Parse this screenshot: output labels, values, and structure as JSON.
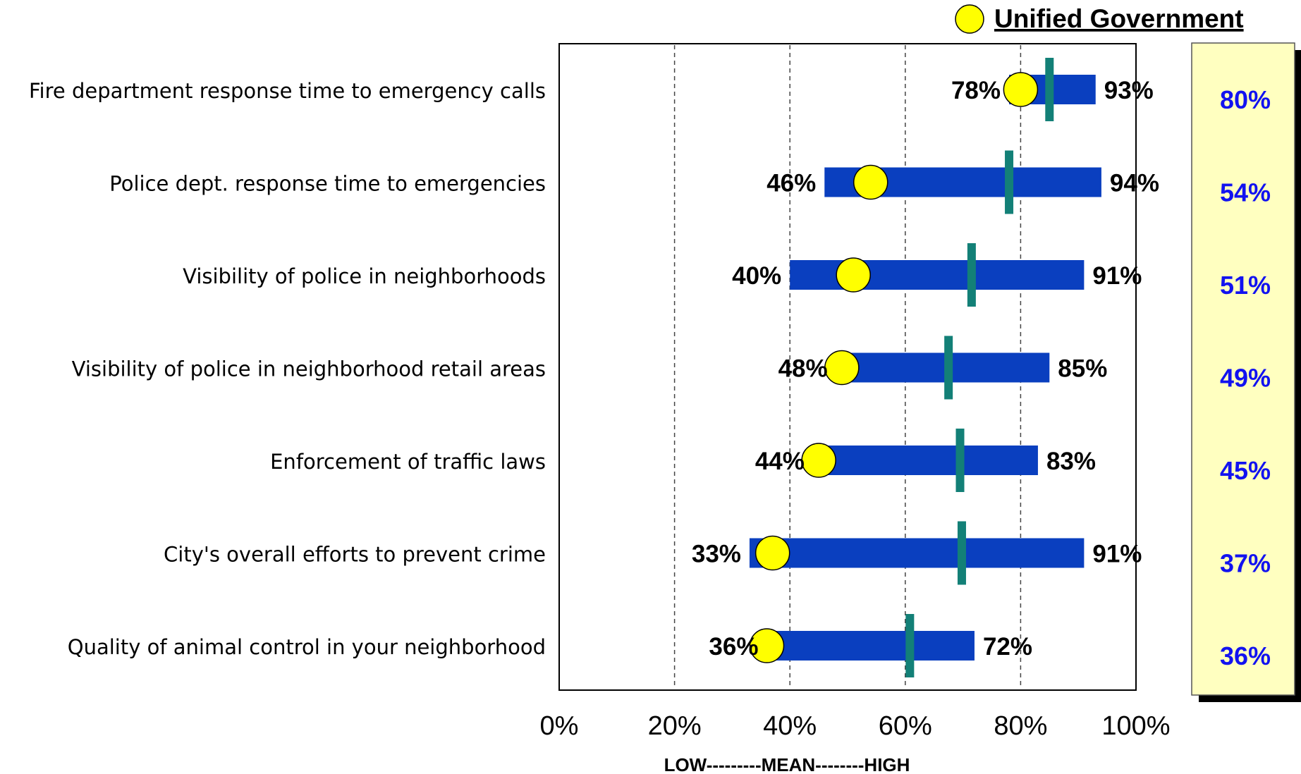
{
  "chart_data": {
    "type": "range-bar",
    "legend": "Unified Government",
    "xlabel": "LOW---------MEAN--------HIGH",
    "xlim": [
      0,
      100
    ],
    "x_ticks": [
      "0%",
      "20%",
      "40%",
      "60%",
      "80%",
      "100%"
    ],
    "grid": "vertical dashed at 20, 40, 60, 80",
    "colors": {
      "bar": "#0a3fbf",
      "mean": "#138077",
      "marker": "#ffff00",
      "ug_text": "#1212f0",
      "panel": "#ffffc0"
    },
    "categories": [
      "Fire department response time to emergency calls",
      "Police dept. response time to emergencies",
      "Visibility of police in neighborhoods",
      "Visibility of police in neighborhood retail areas",
      "Enforcement of traffic laws",
      "City's overall efforts to prevent crime",
      "Quality of animal control in your neighborhood"
    ],
    "low": [
      78,
      46,
      40,
      48,
      44,
      33,
      36
    ],
    "high": [
      93,
      94,
      91,
      85,
      83,
      91,
      72
    ],
    "low_labels": [
      "78%",
      "46%",
      "40%",
      "48%",
      "44%",
      "33%",
      "36%"
    ],
    "high_labels": [
      "93%",
      "94%",
      "91%",
      "85%",
      "83%",
      "91%",
      "72%"
    ],
    "mean": [
      85,
      78,
      71.5,
      67.5,
      69.5,
      69.8,
      60.8
    ],
    "unified_government": [
      80,
      54,
      51,
      49,
      45,
      37,
      36
    ],
    "unified_government_labels": [
      "80%",
      "54%",
      "51%",
      "49%",
      "45%",
      "37%",
      "36%"
    ]
  }
}
